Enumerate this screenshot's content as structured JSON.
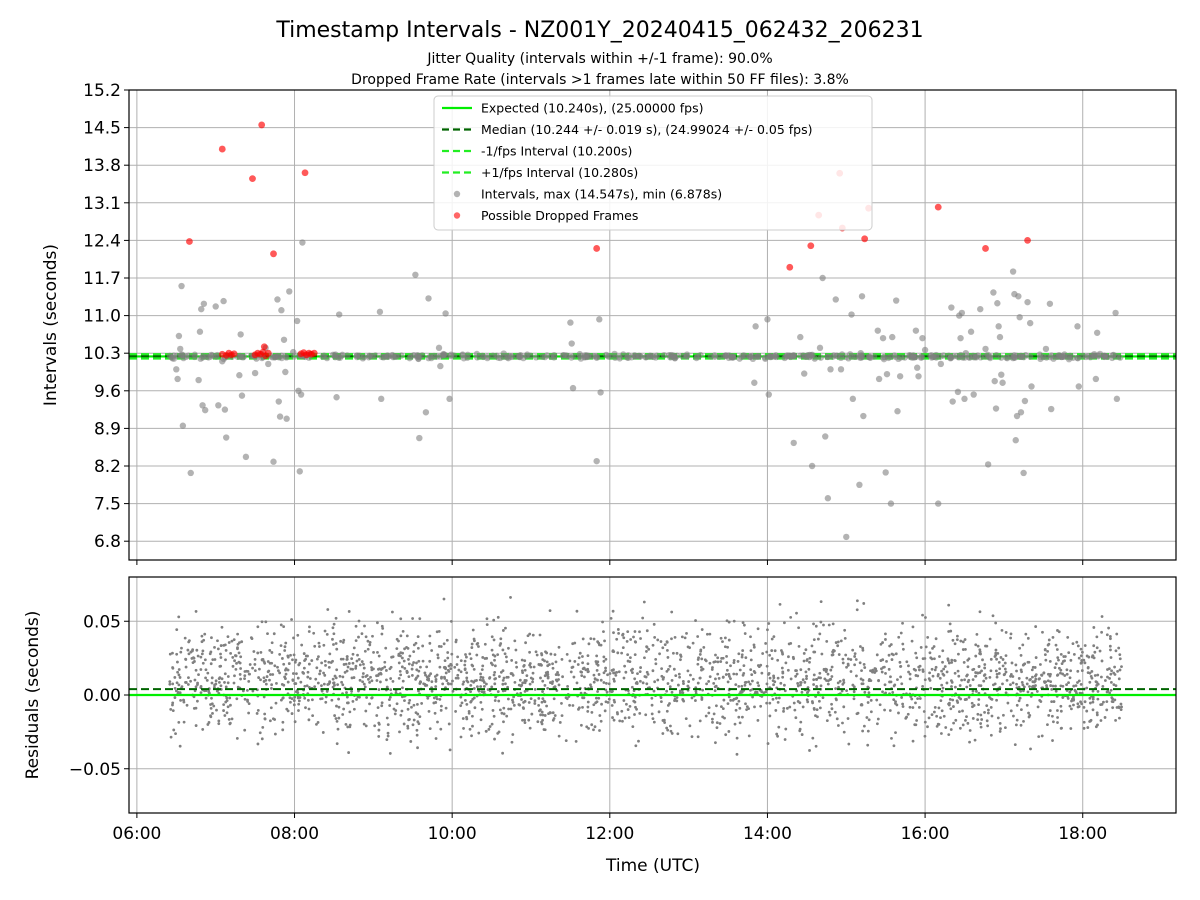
{
  "title": "Timestamp Intervals - NZ001Y_20240415_062432_206231",
  "subtitle_1": "Jitter Quality (intervals within +/-1 frame): 90.0%",
  "subtitle_2": "Dropped Frame Rate (intervals >1 frames late within 50 FF files): 3.8%",
  "colors": {
    "expected": "#00ee00",
    "median": "#006400",
    "bounds": "#22ee22",
    "intervals": "#808080",
    "dropped": "#ff0000",
    "grid": "#b0b0b0"
  },
  "chart_data": [
    {
      "type": "scatter",
      "ylabel": "Intervals (seconds)",
      "ylim": [
        6.45,
        15.2
      ],
      "xlim": [
        "05:54",
        "19:11"
      ],
      "grid": true,
      "y_ticks": [
        "6.8",
        "7.5",
        "8.2",
        "8.9",
        "9.6",
        "10.3",
        "11.0",
        "11.7",
        "12.4",
        "13.1",
        "13.8",
        "14.5",
        "15.2"
      ],
      "x_ticks": [
        "06:00",
        "08:00",
        "10:00",
        "12:00",
        "14:00",
        "16:00",
        "18:00"
      ],
      "legend_position": "upper center",
      "legend": [
        {
          "label": "Expected (10.240s), (25.00000 fps)",
          "style": "solid",
          "color_key": "expected"
        },
        {
          "label": "Median (10.244 +/- 0.019 s), (24.99024 +/- 0.05 fps)",
          "style": "dashed",
          "color_key": "median"
        },
        {
          "label": "-1/fps Interval (10.200s)",
          "style": "dashed",
          "color_key": "bounds"
        },
        {
          "label": "+1/fps Interval (10.280s)",
          "style": "dashed",
          "color_key": "bounds"
        },
        {
          "label": "Intervals, max (14.547s), min (6.878s)",
          "style": "dot",
          "color_key": "intervals"
        },
        {
          "label": "Possible Dropped Frames",
          "style": "dot",
          "color_key": "dropped"
        }
      ],
      "reference_lines": {
        "expected": 10.24,
        "median": 10.244,
        "lower": 10.2,
        "upper": 10.28
      },
      "series": [
        {
          "name": "Intervals, max (14.547s), min (6.878s)",
          "points": [
            [
              "06:30",
              10.0
            ],
            [
              "06:31",
              9.82
            ],
            [
              "06:32",
              10.62
            ],
            [
              "06:33",
              10.38
            ],
            [
              "06:34",
              11.55
            ],
            [
              "06:35",
              8.95
            ],
            [
              "06:41",
              8.07
            ],
            [
              "06:47",
              9.8
            ],
            [
              "06:48",
              10.7
            ],
            [
              "06:49",
              11.12
            ],
            [
              "06:50",
              9.33
            ],
            [
              "06:51",
              11.22
            ],
            [
              "06:52",
              9.24
            ],
            [
              "07:00",
              11.17
            ],
            [
              "07:02",
              9.33
            ],
            [
              "07:05",
              10.15
            ],
            [
              "07:06",
              11.27
            ],
            [
              "07:07",
              9.25
            ],
            [
              "07:08",
              8.73
            ],
            [
              "07:18",
              9.89
            ],
            [
              "07:19",
              10.65
            ],
            [
              "07:20",
              9.51
            ],
            [
              "07:23",
              8.37
            ],
            [
              "07:30",
              9.93
            ],
            [
              "07:31",
              10.2
            ],
            [
              "07:35",
              10.28
            ],
            [
              "07:38",
              10.4
            ],
            [
              "07:40",
              10.1
            ],
            [
              "07:44",
              8.28
            ],
            [
              "07:47",
              11.3
            ],
            [
              "07:48",
              9.4
            ],
            [
              "07:49",
              9.12
            ],
            [
              "07:50",
              11.1
            ],
            [
              "07:52",
              10.55
            ],
            [
              "07:53",
              9.95
            ],
            [
              "07:54",
              9.08
            ],
            [
              "07:56",
              11.45
            ],
            [
              "07:59",
              10.32
            ],
            [
              "08:02",
              10.9
            ],
            [
              "08:03",
              9.6
            ],
            [
              "08:04",
              8.1
            ],
            [
              "08:05",
              9.53
            ],
            [
              "08:06",
              12.36
            ],
            [
              "08:12",
              10.28
            ],
            [
              "08:32",
              9.48
            ],
            [
              "08:34",
              11.02
            ],
            [
              "09:05",
              11.07
            ],
            [
              "09:06",
              9.45
            ],
            [
              "09:32",
              11.76
            ],
            [
              "09:35",
              8.72
            ],
            [
              "09:40",
              9.2
            ],
            [
              "09:42",
              11.32
            ],
            [
              "09:50",
              10.4
            ],
            [
              "09:51",
              10.06
            ],
            [
              "09:55",
              11.04
            ],
            [
              "09:58",
              9.45
            ],
            [
              "11:30",
              10.87
            ],
            [
              "11:31",
              10.48
            ],
            [
              "11:32",
              9.65
            ],
            [
              "11:50",
              8.29
            ],
            [
              "11:52",
              10.93
            ],
            [
              "11:53",
              9.57
            ],
            [
              "13:50",
              9.75
            ],
            [
              "13:51",
              10.8
            ],
            [
              "14:00",
              10.93
            ],
            [
              "14:01",
              9.53
            ],
            [
              "14:20",
              8.63
            ],
            [
              "14:25",
              10.6
            ],
            [
              "14:28",
              9.92
            ],
            [
              "14:34",
              8.2
            ],
            [
              "14:36",
              10.2
            ],
            [
              "14:40",
              10.4
            ],
            [
              "14:42",
              11.7
            ],
            [
              "14:44",
              8.75
            ],
            [
              "14:46",
              7.6
            ],
            [
              "14:48",
              10.0
            ],
            [
              "14:52",
              11.3
            ],
            [
              "14:56",
              10.0
            ],
            [
              "15:04",
              11.02
            ],
            [
              "15:05",
              9.45
            ],
            [
              "15:10",
              7.85
            ],
            [
              "15:11",
              10.3
            ],
            [
              "15:12",
              11.36
            ],
            [
              "15:13",
              9.13
            ],
            [
              "15:18",
              10.22
            ],
            [
              "15:24",
              10.72
            ],
            [
              "15:25",
              9.82
            ],
            [
              "15:28",
              10.58
            ],
            [
              "15:30",
              8.08
            ],
            [
              "15:31",
              9.91
            ],
            [
              "15:34",
              7.5
            ],
            [
              "15:35",
              10.6
            ],
            [
              "15:38",
              11.28
            ],
            [
              "15:39",
              9.22
            ],
            [
              "15:41",
              9.87
            ],
            [
              "15:53",
              10.72
            ],
            [
              "15:54",
              10.03
            ],
            [
              "15:55",
              9.87
            ],
            [
              "15:58",
              10.58
            ],
            [
              "16:00",
              10.36
            ],
            [
              "16:06",
              10.23
            ],
            [
              "16:10",
              7.5
            ],
            [
              "16:12",
              10.1
            ],
            [
              "16:20",
              11.15
            ],
            [
              "16:21",
              9.4
            ],
            [
              "16:25",
              9.58
            ],
            [
              "16:26",
              11.0
            ],
            [
              "16:27",
              10.58
            ],
            [
              "16:28",
              11.05
            ],
            [
              "16:30",
              9.45
            ],
            [
              "16:31",
              10.3
            ],
            [
              "16:35",
              10.7
            ],
            [
              "16:37",
              9.53
            ],
            [
              "16:42",
              11.12
            ],
            [
              "16:46",
              10.38
            ],
            [
              "16:48",
              8.23
            ],
            [
              "16:52",
              11.43
            ],
            [
              "16:53",
              9.78
            ],
            [
              "16:54",
              9.27
            ],
            [
              "16:55",
              11.23
            ],
            [
              "16:56",
              10.8
            ],
            [
              "16:57",
              10.6
            ],
            [
              "16:58",
              9.9
            ],
            [
              "16:59",
              9.75
            ],
            [
              "17:07",
              11.82
            ],
            [
              "17:08",
              11.4
            ],
            [
              "17:09",
              8.68
            ],
            [
              "17:10",
              9.13
            ],
            [
              "17:11",
              11.36
            ],
            [
              "17:12",
              10.97
            ],
            [
              "17:13",
              9.2
            ],
            [
              "17:15",
              8.07
            ],
            [
              "17:16",
              9.41
            ],
            [
              "17:18",
              11.25
            ],
            [
              "17:20",
              10.86
            ],
            [
              "17:21",
              9.68
            ],
            [
              "17:32",
              10.38
            ],
            [
              "17:35",
              11.22
            ],
            [
              "17:36",
              9.26
            ],
            [
              "17:56",
              10.8
            ],
            [
              "17:57",
              9.68
            ],
            [
              "18:10",
              9.82
            ],
            [
              "18:11",
              10.68
            ],
            [
              "18:25",
              11.05
            ],
            [
              "18:26",
              9.45
            ],
            [
              "15:00",
              6.88
            ]
          ]
        },
        {
          "name": "Possible Dropped Frames",
          "points": [
            [
              "06:40",
              12.38
            ],
            [
              "07:05",
              14.1
            ],
            [
              "07:28",
              13.55
            ],
            [
              "07:35",
              14.55
            ],
            [
              "07:44",
              12.15
            ],
            [
              "08:08",
              13.66
            ],
            [
              "11:50",
              12.25
            ],
            [
              "14:17",
              11.9
            ],
            [
              "14:33",
              12.3
            ],
            [
              "14:39",
              12.87
            ],
            [
              "14:55",
              13.65
            ],
            [
              "14:57",
              12.63
            ],
            [
              "15:14",
              12.43
            ],
            [
              "15:17",
              13.0
            ],
            [
              "16:10",
              13.02
            ],
            [
              "16:46",
              12.25
            ],
            [
              "17:18",
              12.4
            ],
            [
              "07:05",
              10.28
            ],
            [
              "07:08",
              10.26
            ],
            [
              "07:10",
              10.3
            ],
            [
              "07:12",
              10.27
            ],
            [
              "07:14",
              10.29
            ],
            [
              "07:30",
              10.27
            ],
            [
              "07:32",
              10.3
            ],
            [
              "07:34",
              10.28
            ],
            [
              "07:36",
              10.32
            ],
            [
              "07:38",
              10.25
            ],
            [
              "07:40",
              10.3
            ],
            [
              "07:37",
              10.42
            ],
            [
              "08:05",
              10.29
            ],
            [
              "08:07",
              10.31
            ],
            [
              "08:09",
              10.27
            ],
            [
              "08:11",
              10.3
            ],
            [
              "08:13",
              10.28
            ],
            [
              "08:15",
              10.3
            ]
          ]
        }
      ]
    },
    {
      "type": "scatter",
      "ylabel": "Residuals (seconds)",
      "xlabel": "Time (UTC)",
      "ylim": [
        -0.08,
        0.08
      ],
      "xlim": [
        "05:54",
        "19:11"
      ],
      "grid": true,
      "y_ticks": [
        "0.05",
        "0.00",
        "−0.05"
      ],
      "y_tick_values": [
        0.05,
        0.0,
        -0.05
      ],
      "x_ticks": [
        "06:00",
        "08:00",
        "10:00",
        "12:00",
        "14:00",
        "16:00",
        "18:00"
      ],
      "reference_lines": {
        "expected": 0.0,
        "median": 0.004
      },
      "series": [
        {
          "name": "Residuals",
          "time_range": [
            "06:25",
            "18:30"
          ],
          "count": 2600,
          "center": 0.01,
          "spread": 0.025,
          "color_key": "intervals"
        }
      ]
    }
  ]
}
